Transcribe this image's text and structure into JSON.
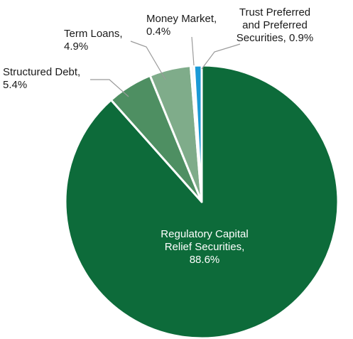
{
  "chart_data": {
    "type": "pie",
    "categories": [
      "Regulatory Capital Relief Securities",
      "Structured Debt",
      "Term Loans",
      "Money Market",
      "Trust Preferred and Preferred Securities"
    ],
    "values": [
      88.6,
      5.4,
      4.9,
      0.4,
      0.9
    ],
    "colors": [
      "#0d6b3a",
      "#4e8f62",
      "#7fac8a",
      "#f5f5f5",
      "#1a9ad6"
    ],
    "start_angle_deg": 0,
    "direction": "clockwise",
    "label_lines": [
      [
        "Regulatory Capital",
        "Relief Securities,",
        "88.6%"
      ],
      [
        "Structured Debt,",
        "5.4%"
      ],
      [
        "Term Loans,",
        "4.9%"
      ],
      [
        "Money Market,",
        "0.4%"
      ],
      [
        "Trust Preferred",
        "and Preferred",
        "Securities, 0.9%"
      ]
    ],
    "legend": "none",
    "title": ""
  }
}
